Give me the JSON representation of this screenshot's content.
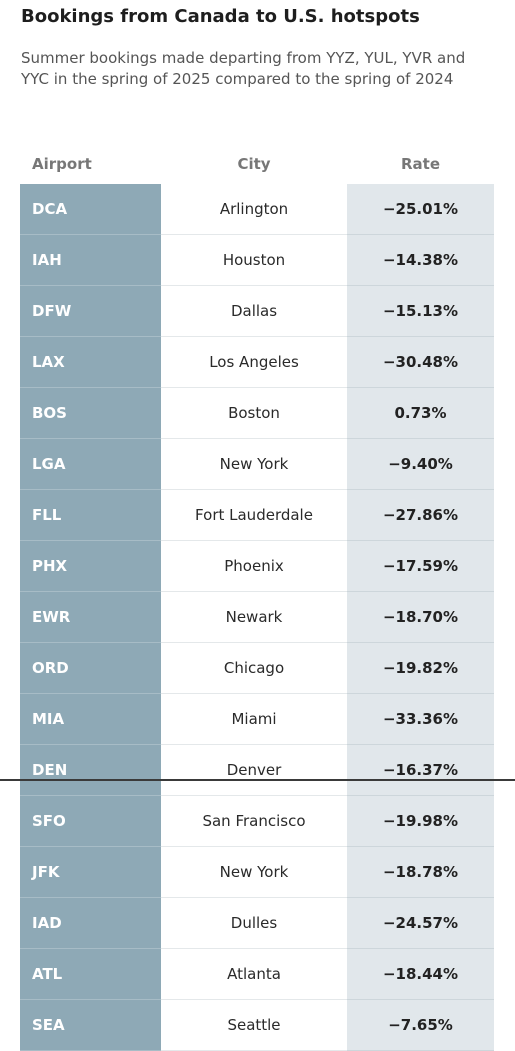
{
  "title": "Bookings from Canada to U.S. hotspots",
  "subtitle": "Summer bookings made departing from YYZ, YUL, YVR and YYC in the spring of 2025 compared to the spring of 2024",
  "headers": {
    "airport": "Airport",
    "city": "City",
    "rate": "Rate"
  },
  "colors": {
    "airport_column": "#8ea9b6",
    "rate_column": "#e1e7eb"
  },
  "rows": [
    {
      "airport": "DCA",
      "city": "Arlington",
      "rate": "−25.01%"
    },
    {
      "airport": "IAH",
      "city": "Houston",
      "rate": "−14.38%"
    },
    {
      "airport": "DFW",
      "city": "Dallas",
      "rate": "−15.13%"
    },
    {
      "airport": "LAX",
      "city": "Los Angeles",
      "rate": "−30.48%"
    },
    {
      "airport": "BOS",
      "city": "Boston",
      "rate": "0.73%"
    },
    {
      "airport": "LGA",
      "city": "New York",
      "rate": "−9.40%"
    },
    {
      "airport": "FLL",
      "city": "Fort Lauderdale",
      "rate": "−27.86%"
    },
    {
      "airport": "PHX",
      "city": "Phoenix",
      "rate": "−17.59%"
    },
    {
      "airport": "EWR",
      "city": "Newark",
      "rate": "−18.70%"
    },
    {
      "airport": "ORD",
      "city": "Chicago",
      "rate": "−19.82%"
    },
    {
      "airport": "MIA",
      "city": "Miami",
      "rate": "−33.36%"
    },
    {
      "airport": "DEN",
      "city": "Denver",
      "rate": "−16.37%"
    },
    {
      "airport": "SFO",
      "city": "San Francisco",
      "rate": "−19.98%"
    },
    {
      "airport": "JFK",
      "city": "New York",
      "rate": "−18.78%"
    },
    {
      "airport": "IAD",
      "city": "Dulles",
      "rate": "−24.57%"
    },
    {
      "airport": "ATL",
      "city": "Atlanta",
      "rate": "−18.44%"
    },
    {
      "airport": "SEA",
      "city": "Seattle",
      "rate": "−7.65%"
    }
  ]
}
